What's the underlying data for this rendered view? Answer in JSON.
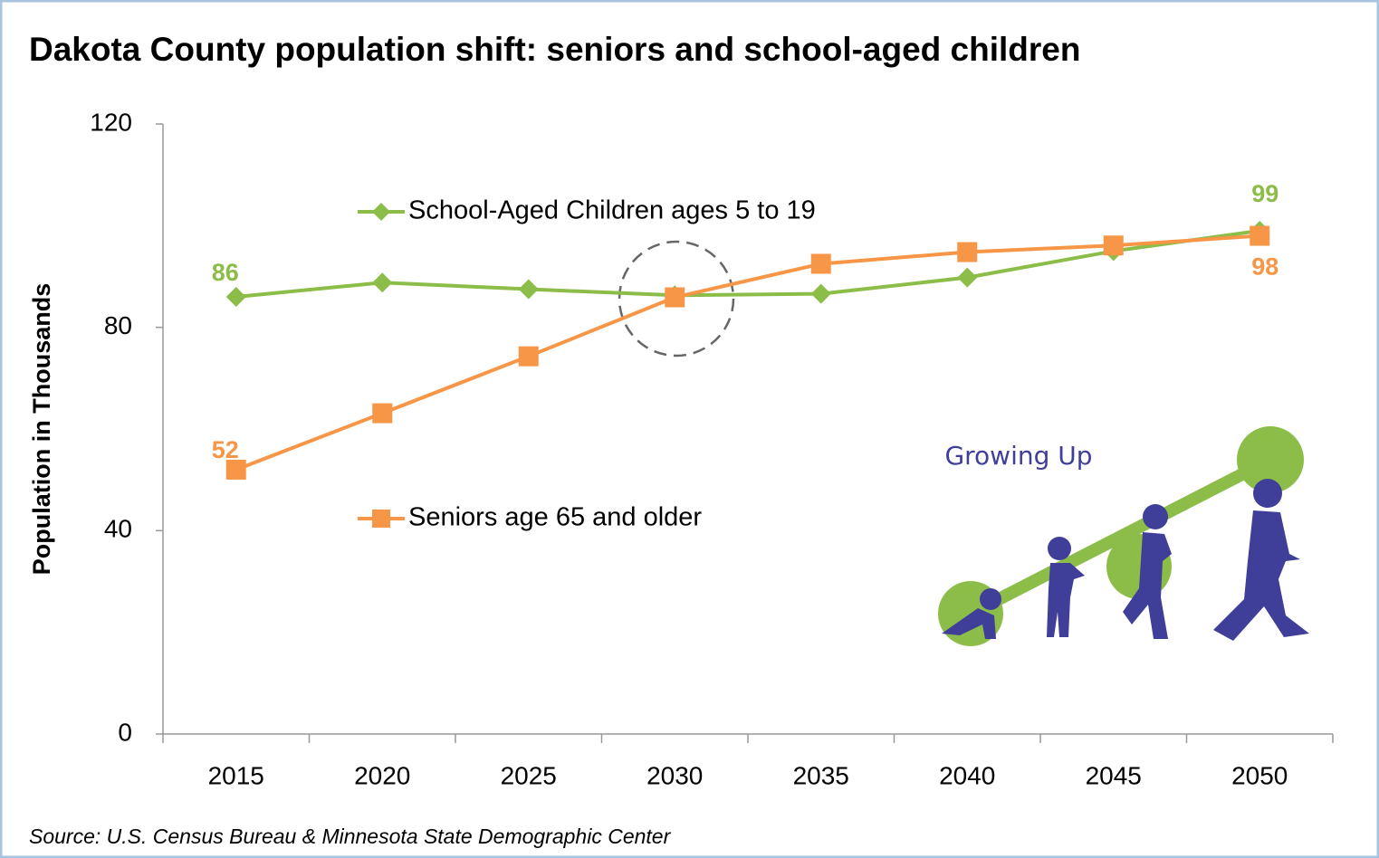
{
  "chart_data": {
    "type": "line",
    "title": "Dakota County population shift: seniors and school-aged children",
    "y_label": "Population in Thousands",
    "source": "Source: U.S. Census Bureau & Minnesota State Demographic Center",
    "annotation": "Growing Up",
    "categories": [
      "2015",
      "2020",
      "2025",
      "2030",
      "2035",
      "2040",
      "2045",
      "2050"
    ],
    "series": [
      {
        "name": "School-Aged Children ages 5 to 19",
        "color": "#8cbd48",
        "marker": "diamond",
        "values": [
          86,
          88.8,
          87.5,
          86.3,
          86.6,
          89.8,
          95,
          99
        ],
        "value_labels": [
          "86",
          null,
          null,
          null,
          null,
          null,
          null,
          "99"
        ]
      },
      {
        "name": "Seniors age 65 and older",
        "color": "#f79646",
        "marker": "square",
        "values": [
          52,
          63.1,
          74.3,
          85.9,
          92.5,
          94.8,
          96.1,
          98
        ],
        "value_labels": [
          "52",
          null,
          null,
          null,
          null,
          null,
          null,
          "98"
        ]
      }
    ],
    "ylim": [
      0,
      120
    ],
    "yticks": [
      0,
      40,
      80,
      120
    ],
    "grid": false
  }
}
